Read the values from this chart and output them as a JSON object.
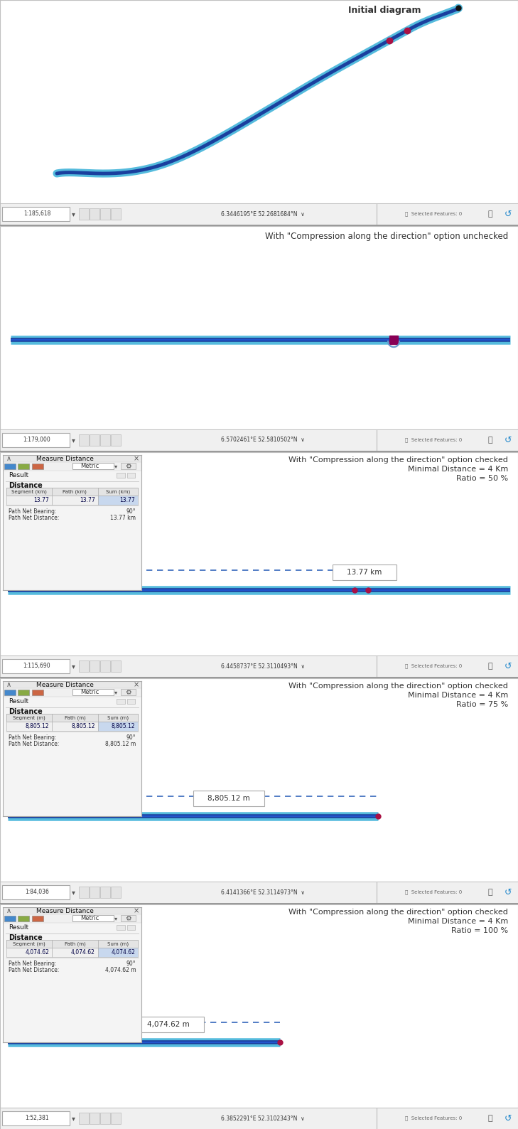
{
  "panel1_title": "Initial diagram",
  "panel2_title": "With \"Compression along the direction\" option unchecked",
  "panel3_title": "With \"Compression along the direction\" option checked\nMinimal Distance = 4 Km\nRatio = 50 %",
  "panel4_title": "With \"Compression along the direction\" option checked\nMinimal Distance = 4 Km\nRatio = 75 %",
  "panel5_title": "With \"Compression along the direction\" option checked\nMinimal Distance = 4 Km\nRatio = 100 %",
  "panel1_scale": "1:185,618",
  "panel1_coords": "6.3446195°E 52.2681684°N",
  "panel2_scale": "1:179,000",
  "panel2_coords": "6.5702461°E 52.5810502°N",
  "panel3_scale": "1:115,690",
  "panel3_coords": "6.4458737°E 52.3110493°N",
  "panel3_distance": "13.77 km",
  "panel4_scale": "1:84,036",
  "panel4_coords": "6.4141366°E 52.3114973°N",
  "panel4_distance": "8,805.12 m",
  "panel5_scale": "1:52,381",
  "panel5_coords": "6.3852291°E 52.3102343°N",
  "panel5_distance": "4,074.62 m",
  "bg_color": "#f0f0f0",
  "white": "#ffffff",
  "statusbar_bg": "#f0f0f0",
  "panel_border": "#c0c0c0",
  "line_blue_dark": "#1a3f9e",
  "line_blue_mid": "#2255cc",
  "line_cyan": "#55bbdd",
  "marker_red": "#aa1144",
  "marker_dark": "#111111",
  "dlg_bg": "#f4f4f4",
  "dlg_border": "#aaaaaa",
  "dlg_header_bg": "#e8e8e8",
  "dlg_toolbar_bg": "#f0f0f0",
  "text_dark": "#333333",
  "text_mid": "#555555",
  "table_header_bg": "#e8e8e8",
  "table_row_bg": "#e0eef8",
  "table_border": "#aaaaaa",
  "dashed_line": "#3366bb",
  "separator_color": "#999999"
}
